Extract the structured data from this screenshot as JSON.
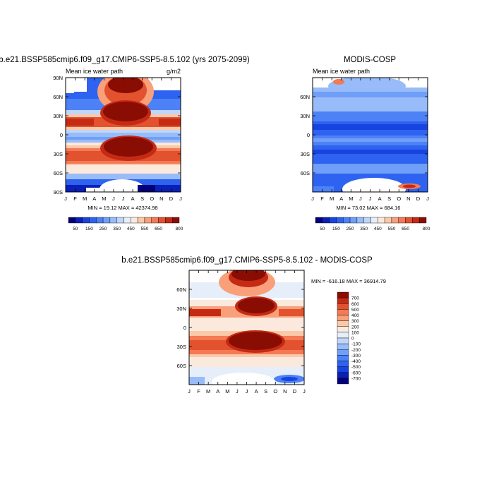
{
  "chart_data": [
    {
      "type": "heatmap",
      "title": "b.e21.BSSP585cmip6.f09_g17.CMIP6-SSP5-8.5.102 (yrs 2075-2099)",
      "subtitle_left": "Mean ice water path",
      "subtitle_right": "g/m2",
      "x_ticks": [
        "J",
        "F",
        "M",
        "A",
        "M",
        "J",
        "J",
        "A",
        "S",
        "O",
        "N",
        "D",
        "J"
      ],
      "y_ticks": [
        "90N",
        "60N",
        "30N",
        "0",
        "30S",
        "60S",
        "90S"
      ],
      "y_tick_values": [
        90,
        60,
        30,
        0,
        -30,
        -60,
        -90
      ],
      "ylim": [
        -90,
        90
      ],
      "stats": "MIN =  19.12 MAX = 42374.98",
      "colorbar_labels": [
        "50",
        "150",
        "250",
        "350",
        "450",
        "550",
        "650",
        "800"
      ],
      "colorbar_orientation": "horizontal",
      "colormap": "blue-white-red",
      "levels": [
        50,
        100,
        150,
        200,
        250,
        300,
        350,
        400,
        450,
        500,
        550,
        600,
        650,
        700,
        800
      ]
    },
    {
      "type": "heatmap",
      "title": "MODIS-COSP",
      "subtitle_left": "Mean ice water path",
      "x_ticks": [
        "J",
        "F",
        "M",
        "A",
        "M",
        "J",
        "J",
        "A",
        "S",
        "O",
        "N",
        "D",
        "J"
      ],
      "y_ticks": [
        "60N",
        "30N",
        "0",
        "30S",
        "60S"
      ],
      "y_tick_values": [
        60,
        30,
        0,
        -30,
        -60
      ],
      "ylim": [
        -90,
        90
      ],
      "stats": "MIN =  73.02 MAX = 684.16",
      "colorbar_labels": [
        "50",
        "150",
        "250",
        "350",
        "450",
        "550",
        "650",
        "800"
      ],
      "colorbar_orientation": "horizontal",
      "colormap": "blue-white-red",
      "levels": [
        50,
        100,
        150,
        200,
        250,
        300,
        350,
        400,
        450,
        500,
        550,
        600,
        650,
        700,
        800
      ]
    },
    {
      "type": "heatmap",
      "title": "b.e21.BSSP585cmip6.f09_g17.CMIP6-SSP5-8.5.102 - MODIS-COSP",
      "x_ticks": [
        "J",
        "F",
        "M",
        "A",
        "M",
        "J",
        "J",
        "A",
        "S",
        "O",
        "N",
        "D",
        "J"
      ],
      "y_ticks": [
        "60N",
        "30N",
        "0",
        "30S",
        "60S"
      ],
      "y_tick_values": [
        60,
        30,
        0,
        -30,
        -60
      ],
      "ylim": [
        -90,
        90
      ],
      "stats": "MIN = -616.18 MAX = 36914.79",
      "colorbar_labels": [
        "700",
        "600",
        "500",
        "400",
        "300",
        "200",
        "100",
        "0",
        "-100",
        "-200",
        "-300",
        "-400",
        "-500",
        "-600",
        "-700"
      ],
      "colorbar_orientation": "vertical",
      "colormap": "blue-white-red diverging",
      "levels": [
        -700,
        -600,
        -500,
        -400,
        -300,
        -200,
        -100,
        0,
        100,
        200,
        300,
        400,
        500,
        600,
        700
      ]
    }
  ],
  "colors": {
    "scale": [
      "#03007a",
      "#0a1fb6",
      "#1744e0",
      "#2e62f0",
      "#4c82f6",
      "#6f9ff8",
      "#97bcf9",
      "#c0d6f9",
      "#e6eefa",
      "#fbe9dd",
      "#fcc8a8",
      "#f9a07a",
      "#f37a55",
      "#e2522f",
      "#c42a14",
      "#8a0d03"
    ]
  }
}
